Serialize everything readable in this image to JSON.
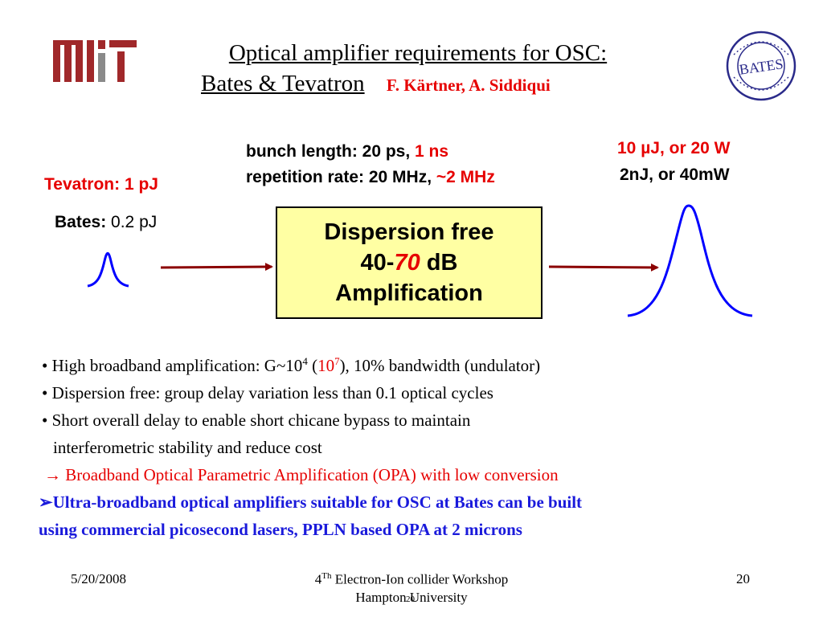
{
  "header": {
    "logo_text": "MIT",
    "title_line1": "Optical amplifier requirements for OSC:",
    "title_line2": "Bates  &  Tevatron",
    "authors": "F. Kärtner, A. Siddiqui",
    "seal_text": "LINEAR ACCELERATOR CENTER · MIDDLETON, MA",
    "seal_center": "BATES"
  },
  "input": {
    "tevatron_label": "Tevatron:",
    "tevatron_value": "1 pJ",
    "bates_label": "Bates:",
    "bates_value": "0.2 pJ"
  },
  "params": {
    "bunch_label": "bunch length: 20 ps,",
    "bunch_alt": "1 ns",
    "rep_label": "repetition rate: 20 MHz,",
    "rep_alt_tilde": "~",
    "rep_alt": "2 MHz"
  },
  "box": {
    "line1": "Dispersion free",
    "line2_a": "40-",
    "line2_b": "70",
    "line2_c": " dB",
    "line3": "Amplification"
  },
  "output": {
    "energy_high": "10 µJ, or 20 W",
    "energy_low": "2nJ, or 40mW"
  },
  "bullets": {
    "b1_pre": "• High broadband amplification: G~10",
    "b1_sup1": "4",
    "b1_mid": " (",
    "b1_red": "10",
    "b1_sup2": "7",
    "b1_post": "), 10% bandwidth (undulator)",
    "b2": "• Dispersion free: group delay variation less than 0.1 optical cycles",
    "b3_line1": "• Short overall delay to enable short chicane bypass to maintain",
    "b3_line2": "interferometric stability and reduce cost",
    "arrow": "→",
    "b4": "Broadband Optical Parametric Amplification (OPA) with low conversion",
    "marker": "➢",
    "b5_line1": "Ultra-broadband optical amplifiers suitable for OSC at Bates can be built",
    "b5_line2": "using commercial picosecond lasers, PPLN based OPA at 2 microns"
  },
  "footer": {
    "date": "5/20/2008",
    "workshop_pre": "4",
    "workshop_sup": "Th",
    "workshop_post": " Electron-Ion collider Workshop",
    "venue": "Hampton University",
    "overlay_num": "20",
    "page": "20"
  },
  "colors": {
    "accent_red": "#e60000",
    "accent_blue": "#1a1adb",
    "arrow": "#8b0000",
    "pulse": "#0000ff",
    "box_fill": "#ffffa3",
    "logo": "#a0282a"
  }
}
